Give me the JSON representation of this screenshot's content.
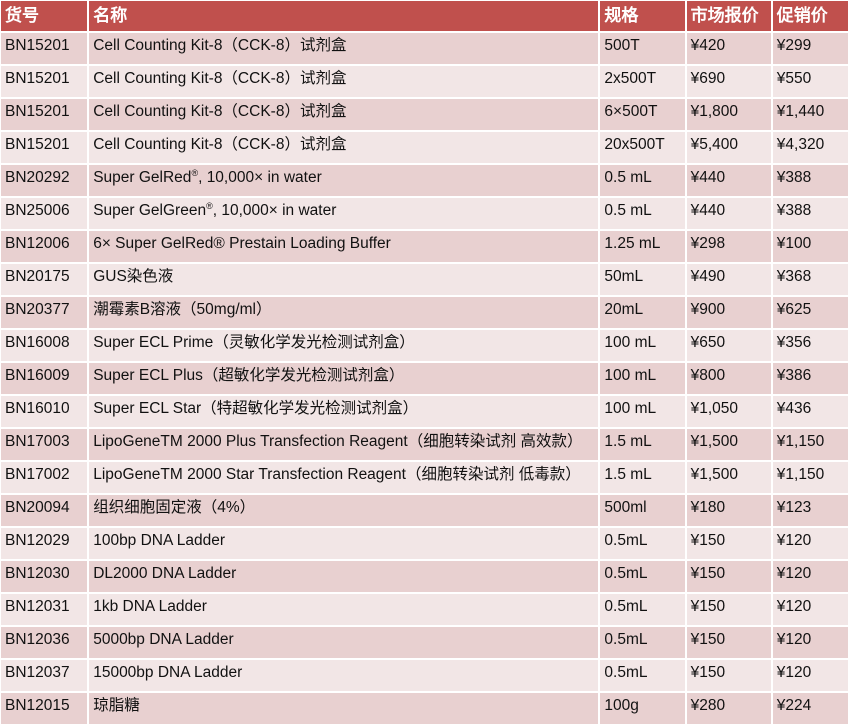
{
  "header": {
    "sku": "货号",
    "name": "名称",
    "spec": "规格",
    "list_price": "市场报价",
    "promo_price": "促销价"
  },
  "colors": {
    "header_bg": "#c0504d",
    "row_odd": "#e8d0d0",
    "row_even": "#f2e6e6"
  },
  "rows": [
    {
      "sku": "BN15201",
      "name": "Cell Counting Kit-8（CCK-8）试剂盒",
      "spec": "500T",
      "list": "¥420",
      "promo": "¥299"
    },
    {
      "sku": "BN15201",
      "name": "Cell Counting Kit-8（CCK-8）试剂盒",
      "spec": "2x500T",
      "list": "¥690",
      "promo": "¥550"
    },
    {
      "sku": "BN15201",
      "name": "Cell Counting Kit-8（CCK-8）试剂盒",
      "spec": "6×500T",
      "list": "¥1,800",
      "promo": "¥1,440"
    },
    {
      "sku": "BN15201",
      "name": "Cell Counting Kit-8（CCK-8）试剂盒",
      "spec": "20x500T",
      "list": "¥5,400",
      "promo": "¥4,320"
    },
    {
      "sku": "BN20292",
      "name": "Super GelRed",
      "name_sup": "®",
      "name_suffix": ", 10,000× in water",
      "spec": "0.5 mL",
      "list": "¥440",
      "promo": "¥388"
    },
    {
      "sku": "BN25006",
      "name": "Super GelGreen",
      "name_sup": "®",
      "name_suffix": ", 10,000× in water",
      "spec": "0.5 mL",
      "list": "¥440",
      "promo": "¥388"
    },
    {
      "sku": "BN12006",
      "name": "6× Super GelRed® Prestain Loading Buffer",
      "spec": "1.25 mL",
      "list": "¥298",
      "promo": "¥100"
    },
    {
      "sku": "BN20175",
      "name": "GUS染色液",
      "spec": "50mL",
      "list": "¥490",
      "promo": "¥368"
    },
    {
      "sku": "BN20377",
      "name": "潮霉素B溶液（50mg/ml）",
      "spec": "20mL",
      "list": "¥900",
      "promo": "¥625"
    },
    {
      "sku": "BN16008",
      "name": "Super ECL Prime（灵敏化学发光检测试剂盒）",
      "spec": "100 mL",
      "list": "¥650",
      "promo": "¥356"
    },
    {
      "sku": "BN16009",
      "name": "Super ECL Plus（超敏化学发光检测试剂盒）",
      "spec": "100 mL",
      "list": "¥800",
      "promo": "¥386"
    },
    {
      "sku": "BN16010",
      "name": "Super ECL Star（特超敏化学发光检测试剂盒）",
      "spec": "100 mL",
      "list": "¥1,050",
      "promo": "¥436"
    },
    {
      "sku": "BN17003",
      "name": "LipoGeneTM 2000 Plus Transfection Reagent（细胞转染试剂 高效款）",
      "spec": "1.5 mL",
      "list": "¥1,500",
      "promo": "¥1,150"
    },
    {
      "sku": "BN17002",
      "name": "LipoGeneTM 2000 Star Transfection Reagent（细胞转染试剂 低毒款）",
      "spec": "1.5 mL",
      "list": "¥1,500",
      "promo": "¥1,150"
    },
    {
      "sku": "BN20094",
      "name": "组织细胞固定液（4%）",
      "spec": "500ml",
      "list": "¥180",
      "promo": "¥123"
    },
    {
      "sku": "BN12029",
      "name": "100bp DNA Ladder",
      "spec": "0.5mL",
      "list": "¥150",
      "promo": "¥120"
    },
    {
      "sku": "BN12030",
      "name": "DL2000 DNA Ladder",
      "spec": "0.5mL",
      "list": "¥150",
      "promo": "¥120"
    },
    {
      "sku": "BN12031",
      "name": "1kb DNA Ladder",
      "spec": "0.5mL",
      "list": "¥150",
      "promo": "¥120"
    },
    {
      "sku": "BN12036",
      "name": "5000bp DNA Ladder",
      "spec": "0.5mL",
      "list": "¥150",
      "promo": "¥120"
    },
    {
      "sku": "BN12037",
      "name": "15000bp DNA Ladder",
      "spec": "0.5mL",
      "list": "¥150",
      "promo": "¥120"
    },
    {
      "sku": "BN12015",
      "name": "琼脂糖",
      "spec": "100g",
      "list": "¥280",
      "promo": "¥224"
    }
  ]
}
